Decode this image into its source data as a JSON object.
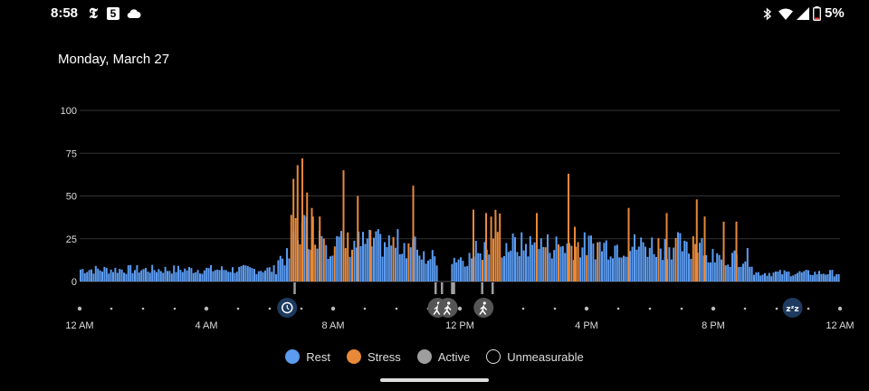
{
  "status_bar": {
    "time": "8:58",
    "nyt_glyph": "𝕿",
    "five_glyph": "5",
    "battery_pct": "5%",
    "icons": [
      "nyt-icon",
      "five-icon",
      "cloud-icon",
      "bluetooth-icon",
      "wifi-icon",
      "signal-icon",
      "battery-icon"
    ]
  },
  "header": {
    "date": "Monday, March 27"
  },
  "colors": {
    "rest": "#5b9bf0",
    "stress": "#e8893a",
    "active": "#9e9e9e",
    "grid": "#333333",
    "text": "#dddddd"
  },
  "chart_data": {
    "type": "bar",
    "xlim": [
      0,
      24
    ],
    "ylim": [
      0,
      100
    ],
    "y_ticks": [
      "0",
      "25",
      "50",
      "75",
      "100"
    ],
    "x_ticks": [
      "12 AM",
      "4 AM",
      "8 AM",
      "12 PM",
      "4 PM",
      "8 PM",
      "12 AM"
    ],
    "grid": true,
    "legend_position": "bottom",
    "segments": [
      {
        "start": 0.0,
        "end": 6.2,
        "category": "rest",
        "avg": 7
      },
      {
        "start": 6.2,
        "end": 6.6,
        "category": "rest",
        "avg": 14
      },
      {
        "start": 6.6,
        "end": 7.8,
        "category": "stress",
        "avg": 30
      },
      {
        "start": 7.8,
        "end": 10.6,
        "category": "rest",
        "avg": 22
      },
      {
        "start": 10.6,
        "end": 11.3,
        "category": "rest",
        "avg": 14
      },
      {
        "start": 11.3,
        "end": 11.7,
        "category": "active",
        "avg": 0
      },
      {
        "start": 11.7,
        "end": 12.45,
        "category": "rest",
        "avg": 14
      },
      {
        "start": 12.45,
        "end": 12.9,
        "category": "stress",
        "avg": 18
      },
      {
        "start": 12.9,
        "end": 13.3,
        "category": "stress",
        "avg": 32
      },
      {
        "start": 13.3,
        "end": 19.0,
        "category": "rest",
        "avg": 21
      },
      {
        "start": 19.0,
        "end": 19.3,
        "category": "rest",
        "avg": 18
      },
      {
        "start": 19.3,
        "end": 19.7,
        "category": "stress",
        "avg": 25
      },
      {
        "start": 19.7,
        "end": 21.2,
        "category": "rest",
        "avg": 14
      },
      {
        "start": 21.2,
        "end": 24.0,
        "category": "rest",
        "avg": 5
      }
    ],
    "spikes": [
      {
        "t": 6.72,
        "v": 60
      },
      {
        "t": 6.85,
        "v": 68
      },
      {
        "t": 7.0,
        "v": 72
      },
      {
        "t": 7.15,
        "v": 52
      },
      {
        "t": 7.3,
        "v": 43
      },
      {
        "t": 7.55,
        "v": 38
      },
      {
        "t": 8.3,
        "v": 65
      },
      {
        "t": 8.75,
        "v": 50
      },
      {
        "t": 9.15,
        "v": 30
      },
      {
        "t": 10.5,
        "v": 56
      },
      {
        "t": 12.4,
        "v": 42
      },
      {
        "t": 12.8,
        "v": 40
      },
      {
        "t": 13.1,
        "v": 38
      },
      {
        "t": 14.4,
        "v": 40
      },
      {
        "t": 15.4,
        "v": 63
      },
      {
        "t": 15.6,
        "v": 32
      },
      {
        "t": 17.3,
        "v": 43
      },
      {
        "t": 18.5,
        "v": 40
      },
      {
        "t": 19.45,
        "v": 48
      },
      {
        "t": 19.7,
        "v": 38
      },
      {
        "t": 20.3,
        "v": 35
      },
      {
        "t": 20.7,
        "v": 35
      }
    ],
    "active_marks": [
      {
        "t": 6.75
      },
      {
        "t": 11.2
      },
      {
        "t": 11.4
      },
      {
        "t": 11.72
      },
      {
        "t": 11.78
      },
      {
        "t": 12.67
      },
      {
        "t": 13.0
      }
    ],
    "event_markers": [
      {
        "t": 6.55,
        "icon": "alarm-icon"
      },
      {
        "t": 11.3,
        "icon": "walking-icon"
      },
      {
        "t": 11.62,
        "icon": "walking-icon"
      },
      {
        "t": 12.75,
        "icon": "walking-icon"
      },
      {
        "t": 22.5,
        "icon": "sleep-icon"
      }
    ],
    "legend": [
      {
        "label": "Rest",
        "key": "rest"
      },
      {
        "label": "Stress",
        "key": "stress"
      },
      {
        "label": "Active",
        "key": "active"
      },
      {
        "label": "Unmeasurable",
        "key": "unmeasurable"
      }
    ]
  }
}
